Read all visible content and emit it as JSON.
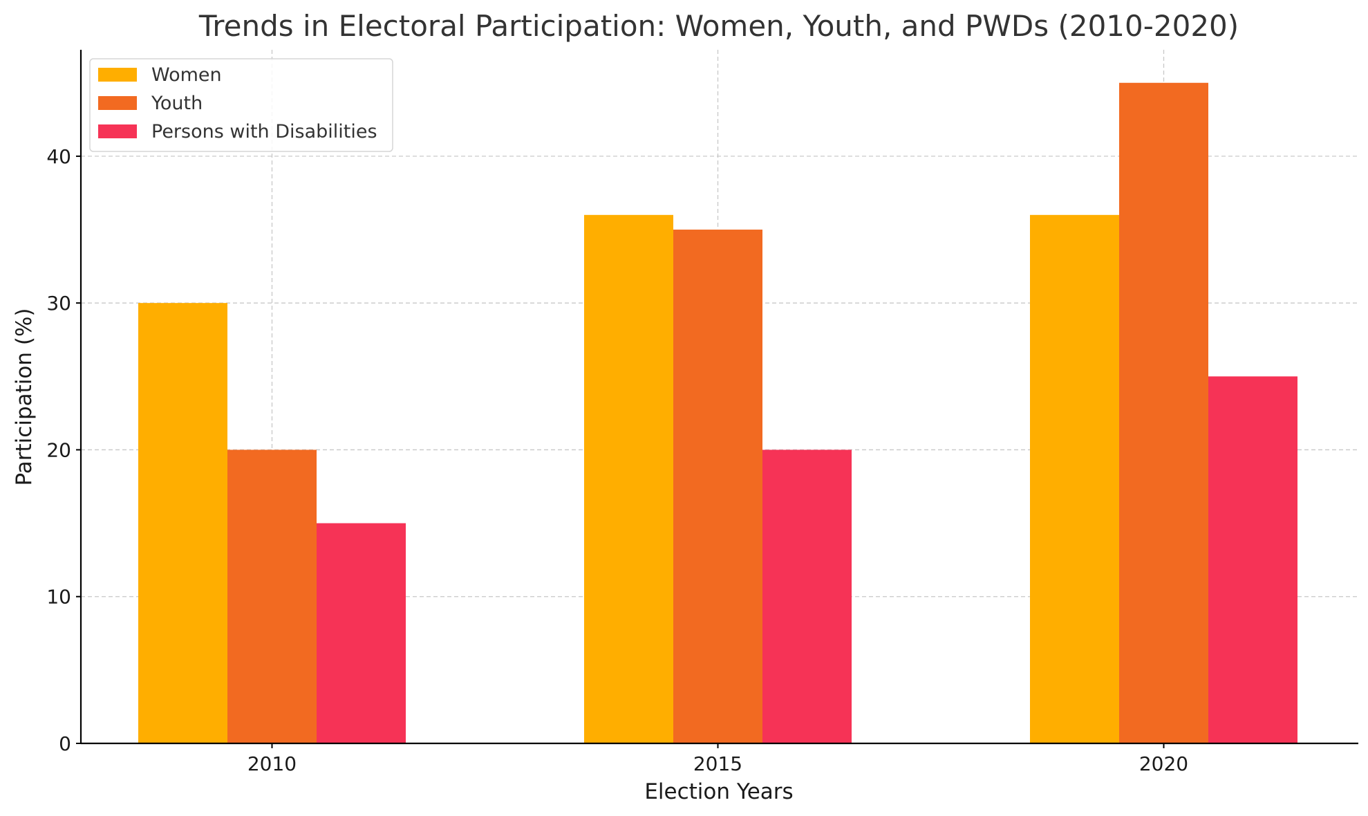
{
  "chart_data": {
    "type": "bar",
    "title": "Trends in Electoral Participation: Women, Youth, and PWDs (2010-2020)",
    "xlabel": "Election Years",
    "ylabel": "Participation (%)",
    "categories": [
      "2010",
      "2015",
      "2020"
    ],
    "series": [
      {
        "name": "Women",
        "color": "#FFAE00",
        "values": [
          30,
          36,
          36
        ]
      },
      {
        "name": "Youth",
        "color": "#F26A21",
        "values": [
          20,
          35,
          45
        ]
      },
      {
        "name": "Persons with Disabilities",
        "color": "#F63356",
        "values": [
          15,
          20,
          25
        ]
      }
    ],
    "ylim": [
      0,
      47.25
    ],
    "yticks": [
      0,
      10,
      20,
      30,
      40
    ],
    "grid": true,
    "legend_position": "top-left"
  }
}
